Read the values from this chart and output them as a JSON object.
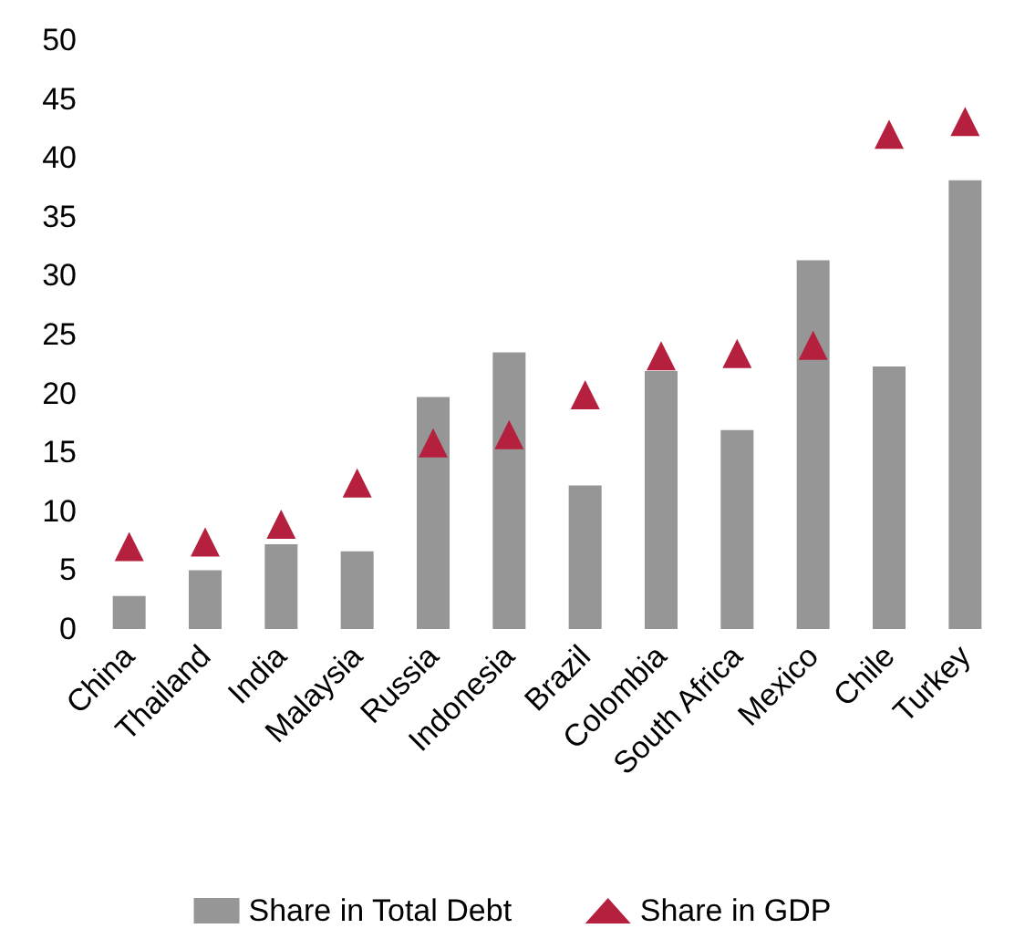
{
  "chart_data": {
    "type": "bar",
    "categories": [
      "China",
      "Thailand",
      "India",
      "Malaysia",
      "Russia",
      "Indonesia",
      "Brazil",
      "Colombia",
      "South Africa",
      "Mexico",
      "Chile",
      "Turkey"
    ],
    "series": [
      {
        "name": "Share in Total Debt",
        "color": "#969696",
        "values": [
          2.8,
          5.0,
          7.2,
          6.6,
          19.7,
          23.5,
          12.2,
          21.9,
          16.9,
          31.3,
          22.3,
          38.1
        ]
      },
      {
        "name": "Share in GDP",
        "type": "scatter",
        "color": "#b5203f",
        "marker": "triangle",
        "values": [
          7.0,
          7.4,
          8.9,
          12.4,
          15.8,
          16.5,
          19.9,
          23.2,
          23.4,
          24.1,
          42.0,
          43.1
        ]
      }
    ],
    "ylim": [
      0,
      50
    ],
    "yticks": [
      0,
      5,
      10,
      15,
      20,
      25,
      30,
      35,
      40,
      45,
      50
    ],
    "grid": false,
    "legend": "bottom"
  }
}
